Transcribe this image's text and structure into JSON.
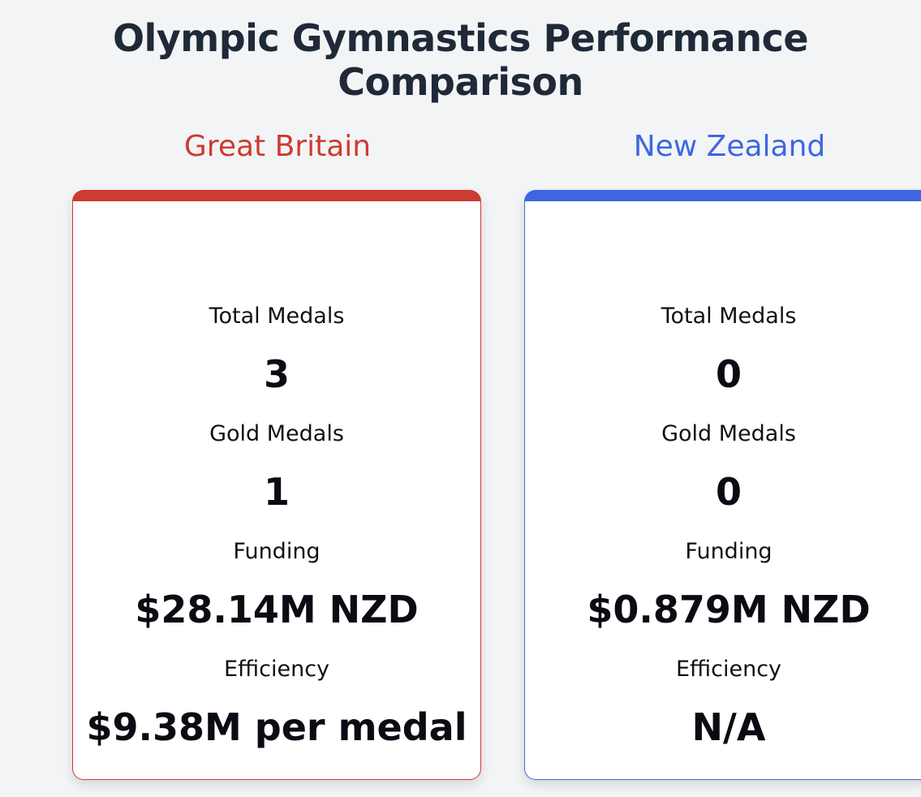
{
  "page": {
    "title": "Olympic Gymnastics Performance Comparison"
  },
  "colors": {
    "gb_accent": "#cd3b30",
    "nz_accent": "#3f66e0",
    "background": "#f3f4f6"
  },
  "countries": [
    {
      "name": "Great Britain",
      "metrics": {
        "total_medals_label": "Total Medals",
        "total_medals": "3",
        "gold_medals_label": "Gold Medals",
        "gold_medals": "1",
        "funding_label": "Funding",
        "funding": "$28.14M NZD",
        "efficiency_label": "Efficiency",
        "efficiency": "$9.38M per medal"
      }
    },
    {
      "name": "New Zealand",
      "metrics": {
        "total_medals_label": "Total Medals",
        "total_medals": "0",
        "gold_medals_label": "Gold Medals",
        "gold_medals": "0",
        "funding_label": "Funding",
        "funding": "$0.879M NZD",
        "efficiency_label": "Efficiency",
        "efficiency": "N/A"
      }
    }
  ]
}
